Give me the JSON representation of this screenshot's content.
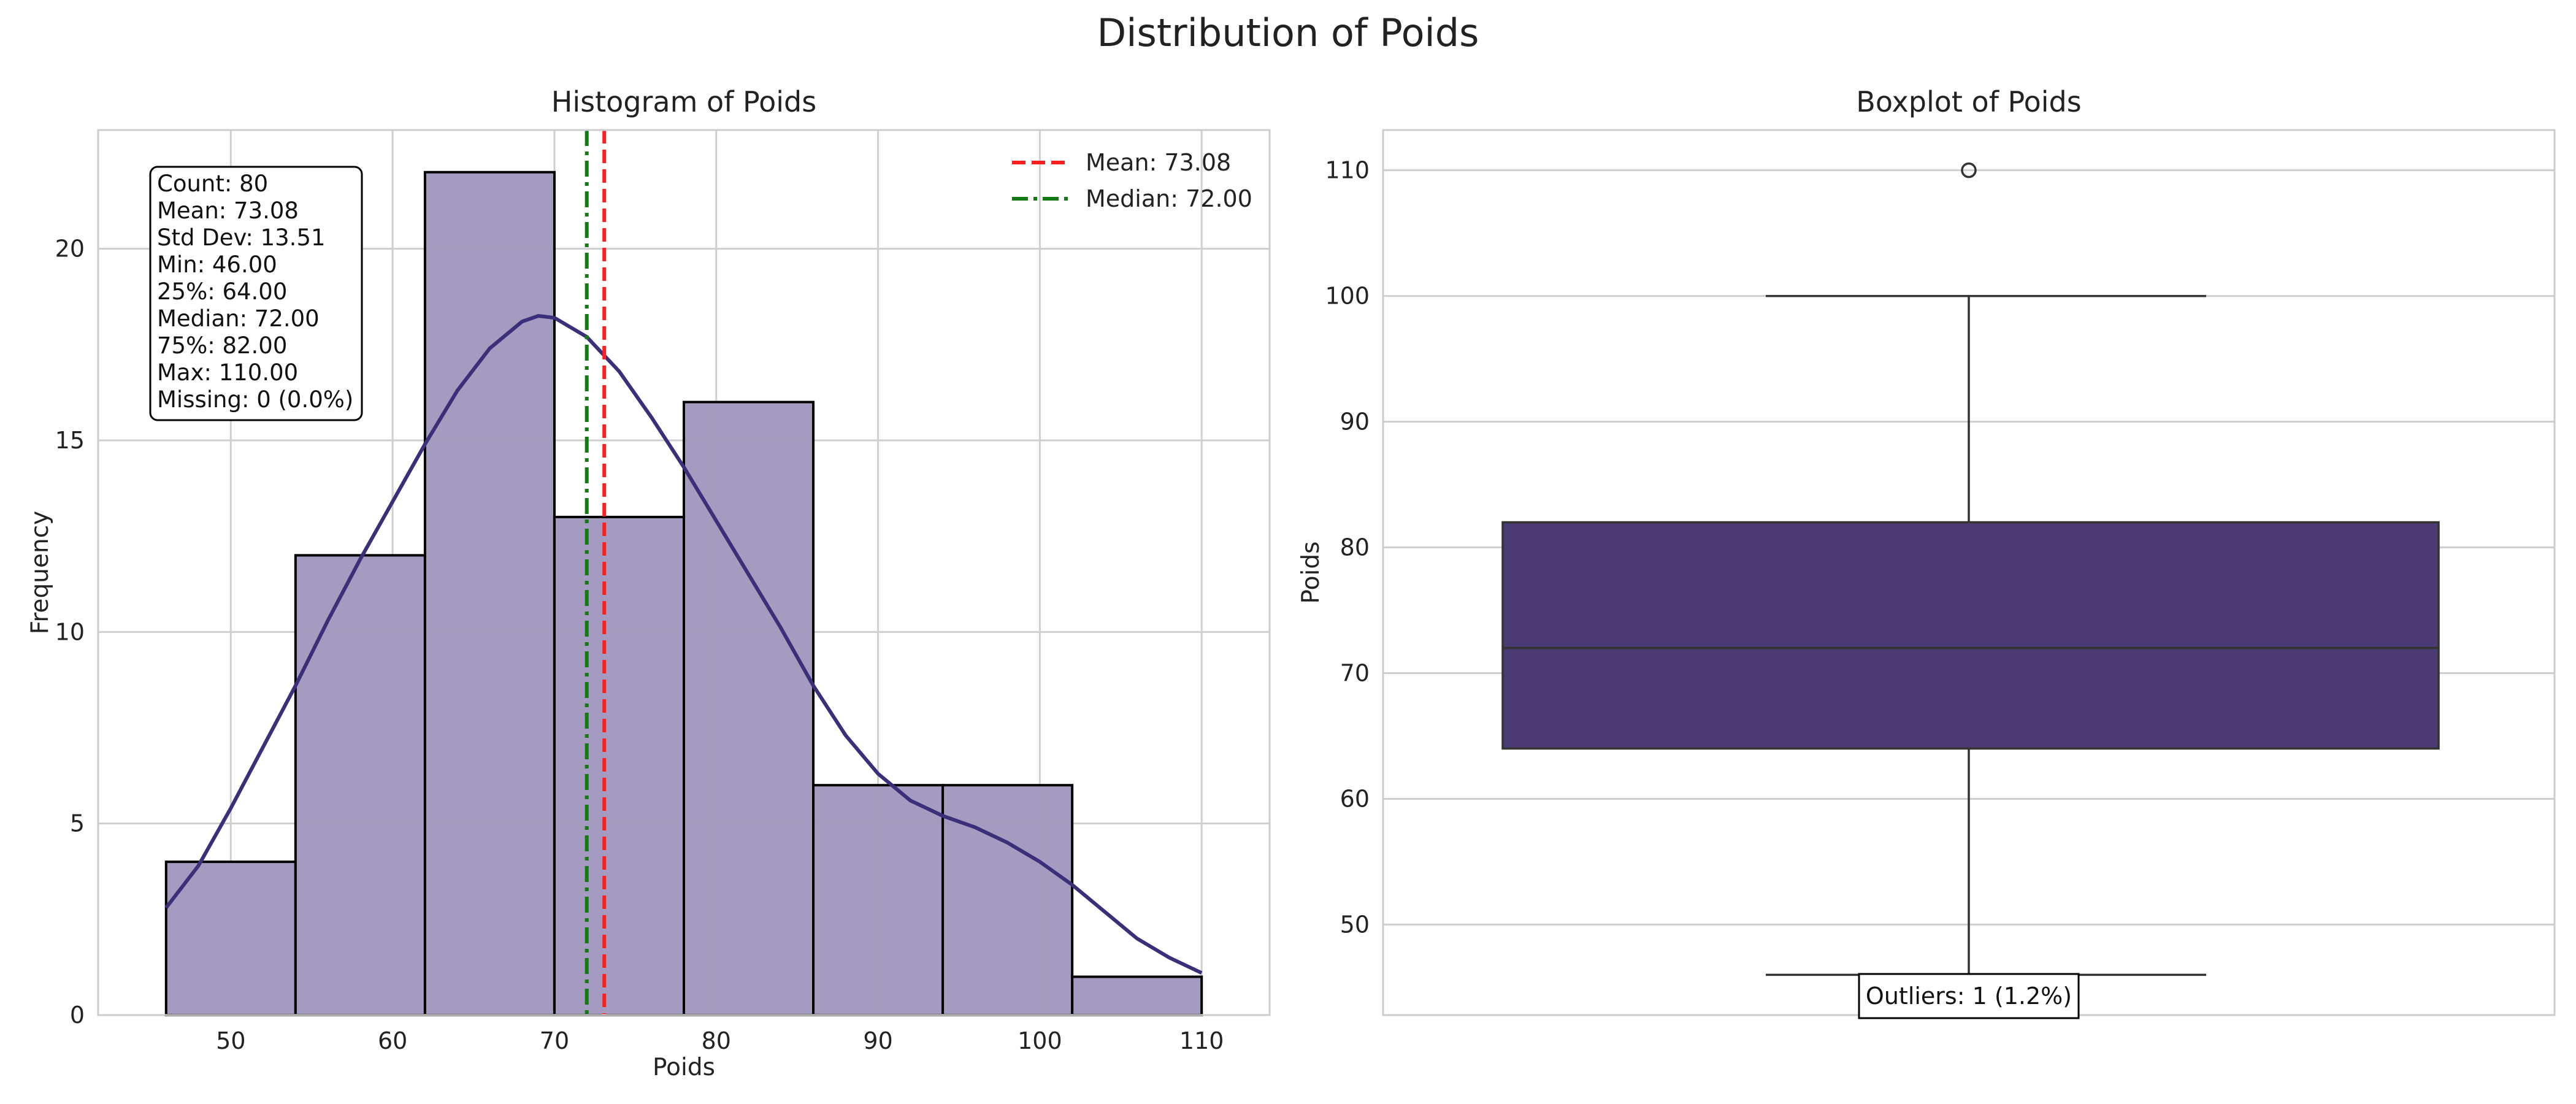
{
  "figure_title": "Distribution of Poids",
  "colors": {
    "bar_fill": "#a398be",
    "kde_line": "#3b2f7a",
    "box_fill": "#4a3b74",
    "mean_line": "#ff1f1f",
    "median_line": "#117a11",
    "grid": "#cfcfcf",
    "axes_frame": "#cccccc"
  },
  "chart_data": [
    {
      "type": "bar",
      "title": "Histogram of Poids",
      "xlabel": "Poids",
      "ylabel": "Frequency",
      "xlim": [
        41.8,
        114.2
      ],
      "ylim": [
        0,
        23.1
      ],
      "xticks": [
        50,
        60,
        70,
        80,
        90,
        100,
        110
      ],
      "yticks": [
        0,
        5,
        10,
        15,
        20
      ],
      "bins": [
        {
          "x0": 46,
          "x1": 54,
          "count": 4
        },
        {
          "x0": 54,
          "x1": 62,
          "count": 12
        },
        {
          "x0": 62,
          "x1": 70,
          "count": 22
        },
        {
          "x0": 70,
          "x1": 78,
          "count": 13
        },
        {
          "x0": 78,
          "x1": 86,
          "count": 16
        },
        {
          "x0": 86,
          "x1": 94,
          "count": 6
        },
        {
          "x0": 94,
          "x1": 102,
          "count": 6
        },
        {
          "x0": 102,
          "x1": 110,
          "count": 1
        }
      ],
      "kde": {
        "x": [
          46,
          48,
          50,
          52,
          54,
          56,
          58,
          60,
          62,
          64,
          66,
          68,
          69,
          70,
          72,
          74,
          76,
          78,
          80,
          82,
          84,
          86,
          88,
          90,
          92,
          94,
          96,
          98,
          100,
          102,
          104,
          106,
          108,
          110
        ],
        "y": [
          2.8,
          3.9,
          5.4,
          7.0,
          8.6,
          10.3,
          11.9,
          13.4,
          14.9,
          16.3,
          17.4,
          18.1,
          18.25,
          18.2,
          17.7,
          16.8,
          15.6,
          14.3,
          12.9,
          11.5,
          10.1,
          8.6,
          7.3,
          6.3,
          5.6,
          5.2,
          4.9,
          4.5,
          4.0,
          3.4,
          2.7,
          2.0,
          1.5,
          1.1
        ]
      },
      "mean": 73.08,
      "median": 72.0,
      "legend": {
        "position": "top-right",
        "entries": [
          "Mean: 73.08",
          "Median: 72.00"
        ]
      },
      "stats_box": {
        "position": "top-left",
        "lines": [
          "Count: 80",
          "Mean: 73.08",
          "Std Dev: 13.51",
          "Min: 46.00",
          "25%: 64.00",
          "Median: 72.00",
          "75%: 82.00",
          "Max: 110.00",
          "Missing: 0 (0.0%)"
        ]
      },
      "grid": true
    },
    {
      "type": "box",
      "title": "Boxplot of Poids",
      "xlabel": "",
      "ylabel": "Poids",
      "ylim": [
        42.8,
        113.2
      ],
      "yticks": [
        50,
        60,
        70,
        80,
        90,
        100,
        110
      ],
      "whisker_low": 46,
      "q1": 64,
      "median": 72,
      "q3": 82,
      "whisker_high": 100,
      "outliers": [
        110
      ],
      "outlier_label": "Outliers: 1 (1.2%)",
      "grid": true
    }
  ]
}
